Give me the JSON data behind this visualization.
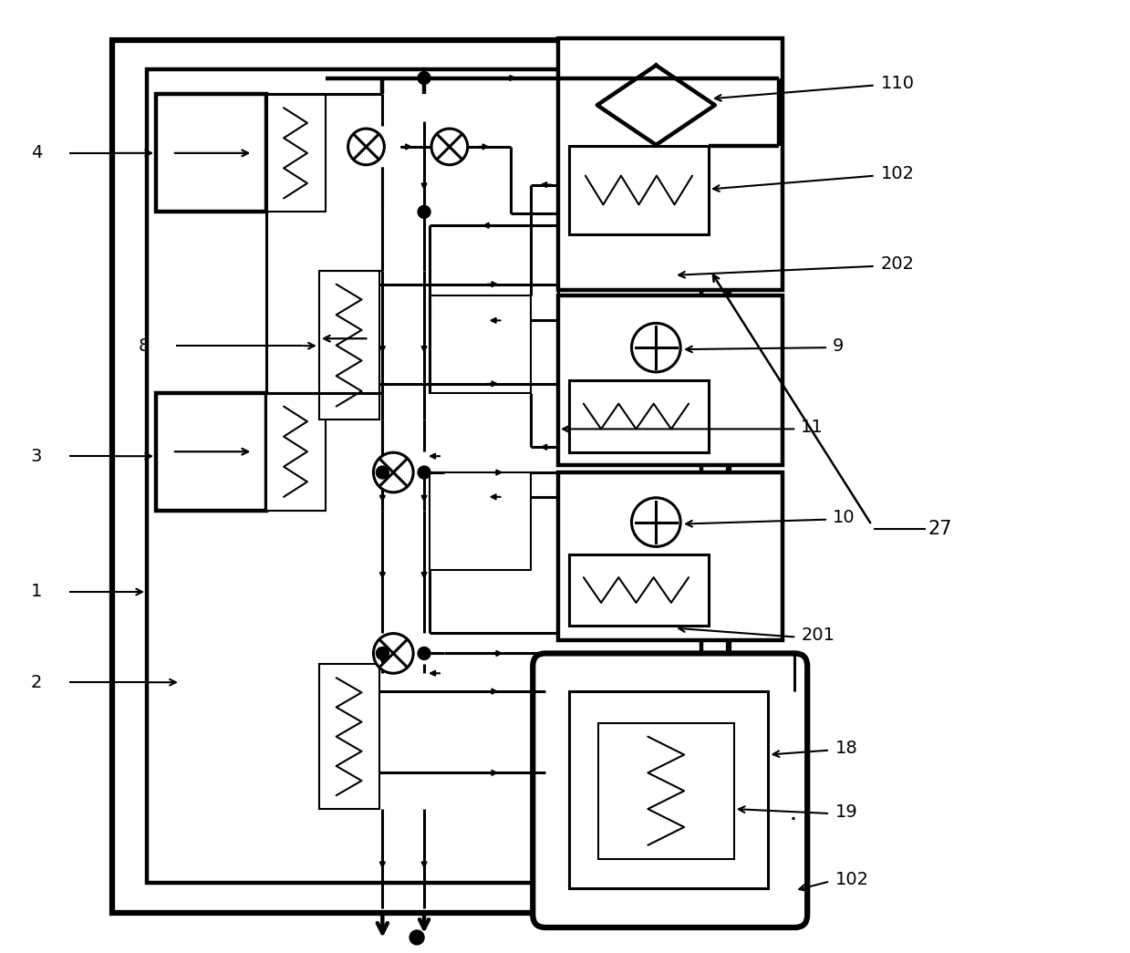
{
  "bg_color": "#ffffff",
  "figsize": [
    12.39,
    10.45
  ],
  "dpi": 100,
  "lw_thin": 1.5,
  "lw_med": 2.2,
  "lw_thick": 3.2,
  "lw_vthick": 4.5
}
